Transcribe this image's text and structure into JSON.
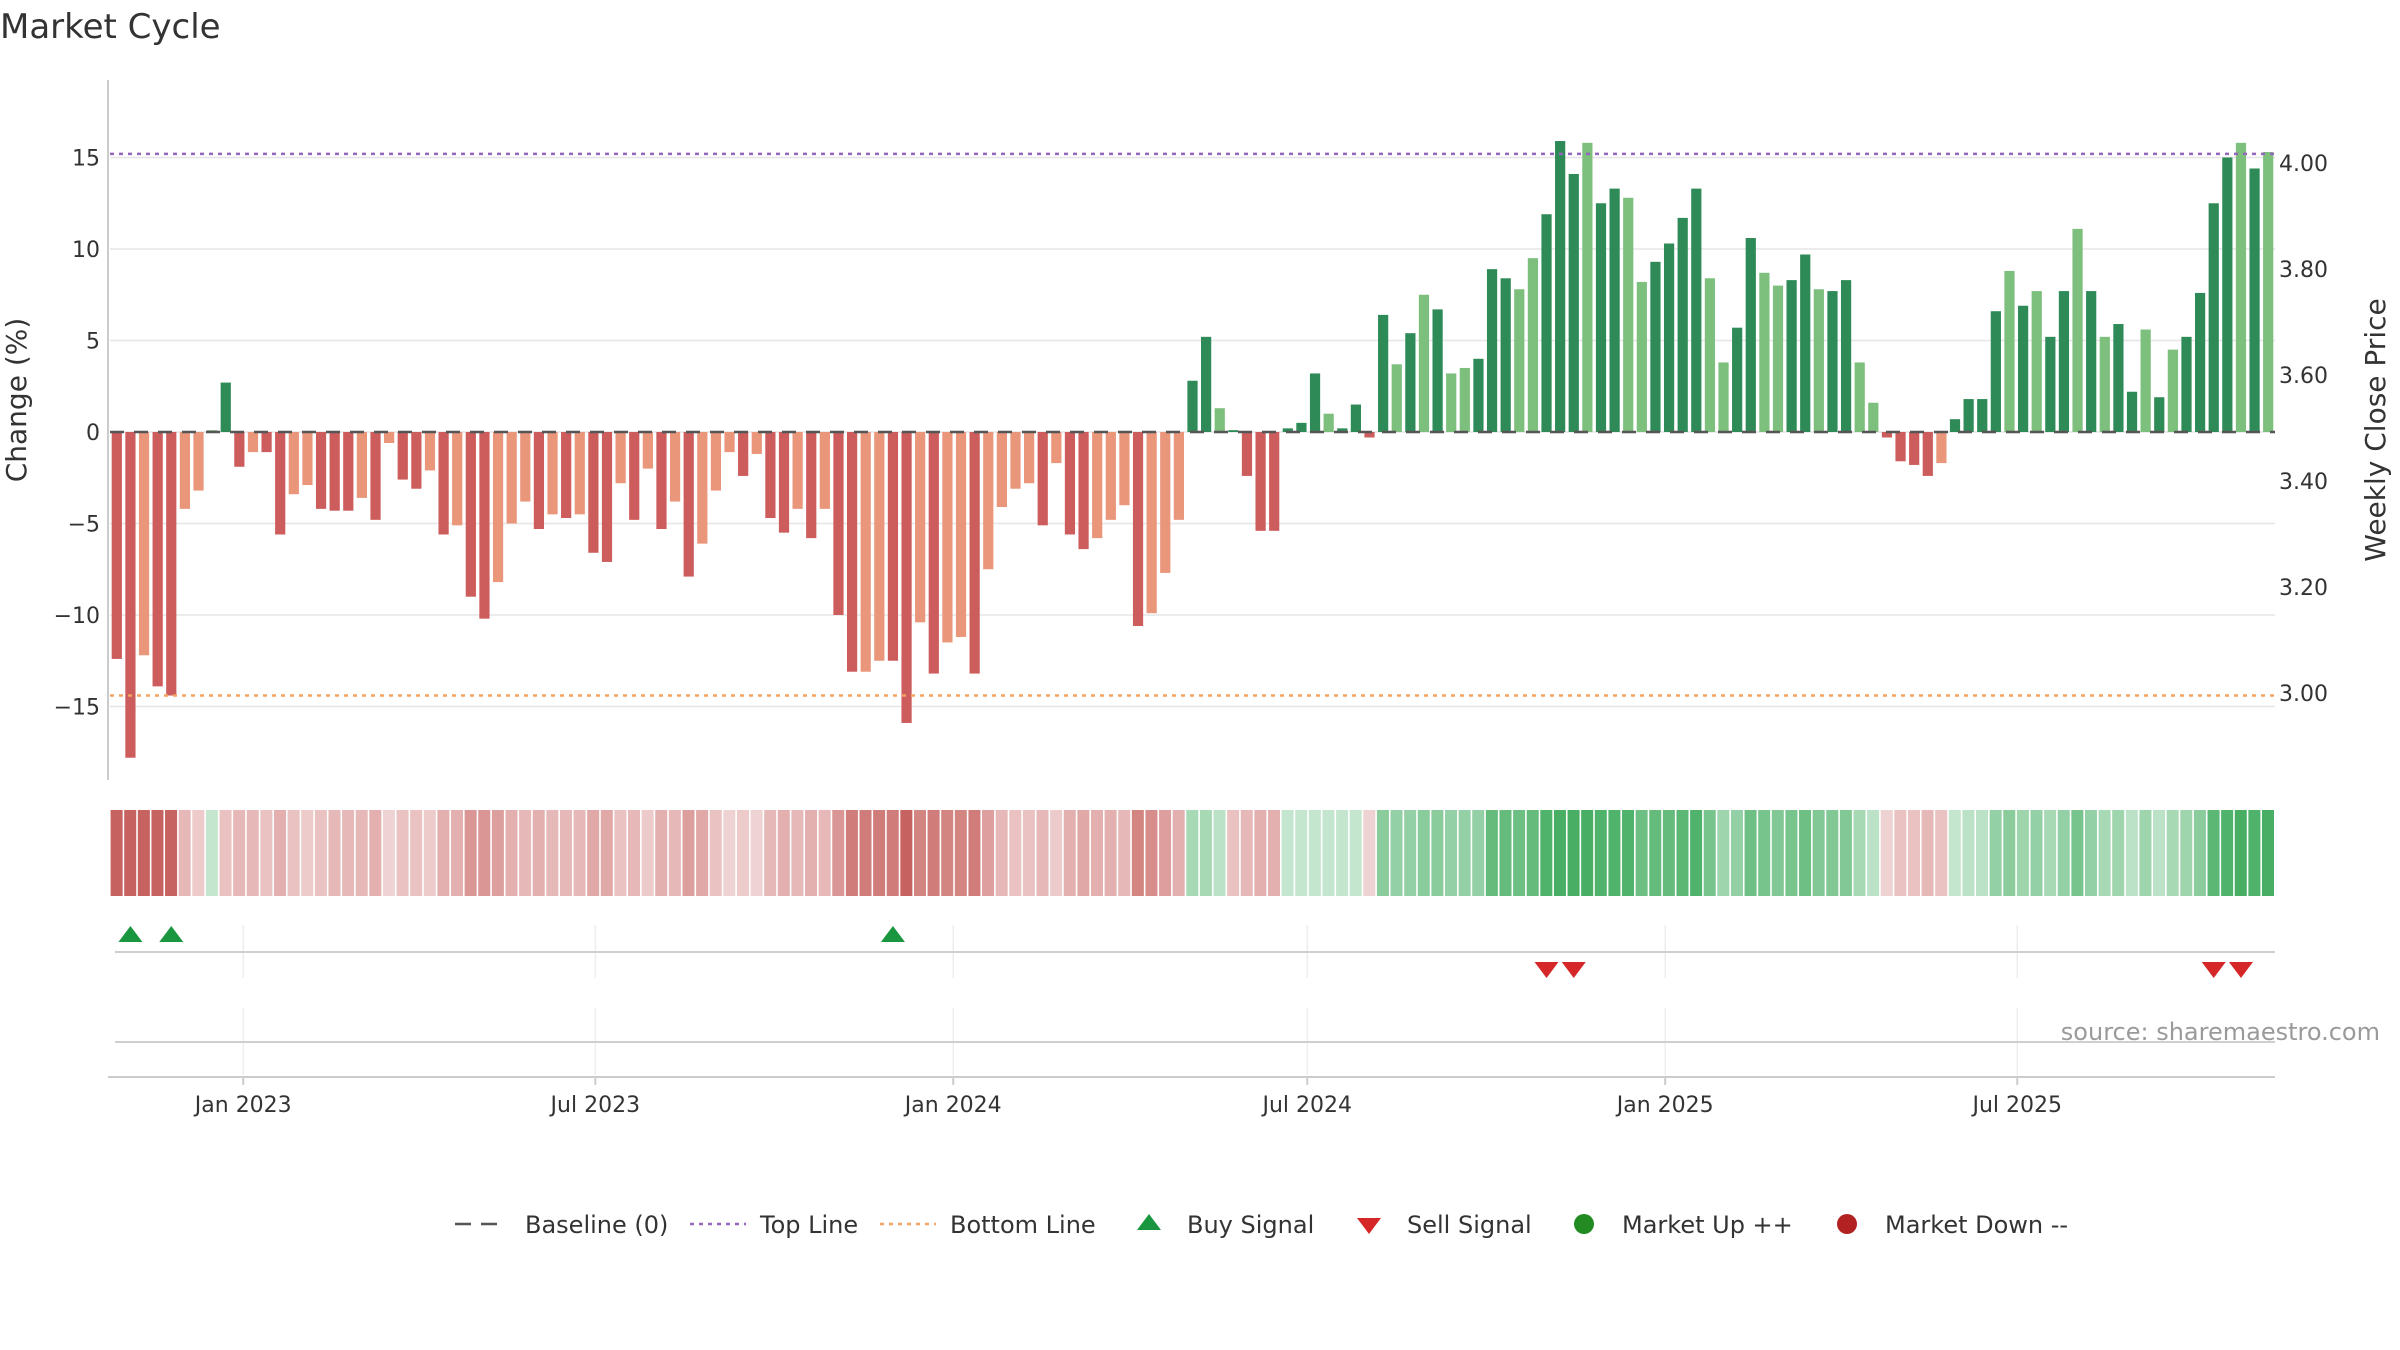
{
  "chart_data": {
    "type": "bar",
    "title": "Market Cycle",
    "ylabel_left": "Change (%)",
    "ylabel_right": "Weekly Close Price",
    "source": "source: sharemaestro.com",
    "y_ticks": [
      "15",
      "10",
      "5",
      "0",
      "−5",
      "−10",
      "−15"
    ],
    "y_tick_values": [
      15,
      10,
      5,
      0,
      -5,
      -10,
      -15
    ],
    "right_ticks": [
      "4.00",
      "3.80",
      "3.60",
      "3.40",
      "3.20",
      "3.00"
    ],
    "right_tick_values": [
      4.0,
      3.8,
      3.6,
      3.4,
      3.2,
      3.0
    ],
    "x_ticks": [
      "Jan 2023",
      "Jul 2023",
      "Jan 2024",
      "Jul 2024",
      "Jan 2025",
      "Jul 2025"
    ],
    "x_tick_dates": [
      "2023-01-01",
      "2023-07-01",
      "2024-01-01",
      "2024-07-01",
      "2025-01-01",
      "2025-07-01"
    ],
    "first_week": "2022-10-28",
    "ylim": [
      -19,
      19
    ],
    "right_ylim": [
      2.85,
      4.12
    ],
    "grid": true,
    "top_line": 15.2,
    "bottom_line": -14.4,
    "colors": {
      "up_strong": "#2e8b57",
      "up_light": "#7dbf7d",
      "down_strong": "#cd5c5c",
      "down_light": "#e9967a",
      "top_line": "#9467bd",
      "bottom_line": "#f4a460",
      "baseline": "#555555",
      "buy": "#1a9641",
      "sell": "#d62728",
      "market_up": "#228b22",
      "market_down": "#b22222",
      "heat_up": "#3daa5b",
      "heat_down": "#c0504d"
    },
    "values": [
      -12.4,
      -17.8,
      -12.2,
      -13.9,
      -14.4,
      -4.2,
      -3.2,
      0.1,
      2.7,
      -1.9,
      -1.1,
      -1.1,
      -5.6,
      -3.4,
      -2.9,
      -4.2,
      -4.3,
      -4.3,
      -3.6,
      -4.8,
      -0.6,
      -2.6,
      -3.1,
      -2.1,
      -5.6,
      -5.1,
      -9.0,
      -10.2,
      -8.2,
      -5.0,
      -3.8,
      -5.3,
      -4.5,
      -4.7,
      -4.5,
      -6.6,
      -7.1,
      -2.8,
      -4.8,
      -2.0,
      -5.3,
      -3.8,
      -7.9,
      -6.1,
      -3.2,
      -1.1,
      -2.4,
      -1.2,
      -4.7,
      -5.5,
      -4.2,
      -5.8,
      -4.2,
      -10.0,
      -13.1,
      -13.1,
      -12.5,
      -12.5,
      -15.9,
      -10.4,
      -13.2,
      -11.5,
      -11.2,
      -13.2,
      -7.5,
      -4.1,
      -3.1,
      -2.8,
      -5.1,
      -1.7,
      -5.6,
      -6.4,
      -5.8,
      -4.8,
      -4.0,
      -10.6,
      -9.9,
      -7.7,
      -4.8,
      2.8,
      5.2,
      1.3,
      0.1,
      -2.4,
      -5.4,
      -5.4,
      0.2,
      0.5,
      3.2,
      1.0,
      0.2,
      1.5,
      -0.3,
      6.4,
      3.7,
      5.4,
      7.5,
      6.7,
      3.2,
      3.5,
      4.0,
      8.9,
      8.4,
      7.8,
      9.5,
      11.9,
      15.9,
      14.1,
      15.8,
      12.5,
      13.3,
      12.8,
      8.2,
      9.3,
      10.3,
      11.7,
      13.3,
      8.4,
      3.8,
      5.7,
      10.6,
      8.7,
      8.0,
      8.3,
      9.7,
      7.8,
      7.7,
      8.3,
      3.8,
      1.6,
      -0.3,
      -1.6,
      -1.8,
      -2.4,
      -1.7,
      0.7,
      1.8,
      1.8,
      6.6,
      8.8,
      6.9,
      7.7,
      5.2,
      7.7,
      11.1,
      7.7,
      5.2,
      5.9,
      2.2,
      5.6,
      1.9,
      4.5,
      5.2,
      7.6,
      12.5,
      15.0,
      15.8,
      14.4,
      15.3
    ],
    "shades": [
      1,
      1,
      0,
      1,
      1,
      0,
      0,
      0,
      1,
      1,
      0,
      1,
      1,
      0,
      0,
      1,
      1,
      1,
      0,
      1,
      0,
      1,
      1,
      0,
      1,
      0,
      1,
      1,
      0,
      0,
      0,
      1,
      0,
      1,
      0,
      1,
      1,
      0,
      1,
      0,
      1,
      0,
      1,
      0,
      0,
      0,
      1,
      0,
      1,
      1,
      0,
      1,
      0,
      1,
      1,
      0,
      0,
      1,
      1,
      0,
      1,
      0,
      0,
      1,
      0,
      0,
      0,
      0,
      1,
      0,
      1,
      1,
      0,
      0,
      0,
      1,
      0,
      0,
      0,
      1,
      1,
      0,
      1,
      1,
      1,
      1,
      1,
      1,
      1,
      0,
      1,
      1,
      1,
      1,
      0,
      1,
      0,
      1,
      0,
      0,
      1,
      1,
      1,
      0,
      0,
      1,
      1,
      1,
      0,
      1,
      1,
      0,
      0,
      1,
      1,
      1,
      1,
      0,
      0,
      1,
      1,
      0,
      0,
      1,
      1,
      0,
      1,
      1,
      0,
      0,
      1,
      1,
      1,
      1,
      0,
      1,
      1,
      1,
      1,
      0,
      1,
      0,
      1,
      1,
      0,
      1,
      0,
      1,
      1,
      0,
      1,
      0,
      1,
      1,
      1,
      1,
      0,
      1
    ],
    "heat": [
      -0.9,
      -0.9,
      -0.9,
      -0.9,
      -0.9,
      -0.4,
      -0.3,
      0.3,
      -0.35,
      -0.4,
      -0.4,
      -0.35,
      -0.45,
      -0.35,
      -0.3,
      -0.35,
      -0.4,
      -0.4,
      -0.4,
      -0.45,
      -0.25,
      -0.35,
      -0.35,
      -0.3,
      -0.45,
      -0.45,
      -0.6,
      -0.6,
      -0.55,
      -0.45,
      -0.4,
      -0.45,
      -0.4,
      -0.4,
      -0.4,
      -0.5,
      -0.5,
      -0.35,
      -0.4,
      -0.3,
      -0.45,
      -0.4,
      -0.55,
      -0.5,
      -0.35,
      -0.25,
      -0.3,
      -0.25,
      -0.4,
      -0.45,
      -0.4,
      -0.45,
      -0.4,
      -0.6,
      -0.75,
      -0.75,
      -0.75,
      -0.75,
      -0.9,
      -0.7,
      -0.75,
      -0.7,
      -0.7,
      -0.75,
      -0.55,
      -0.4,
      -0.35,
      -0.35,
      -0.4,
      -0.3,
      -0.45,
      -0.5,
      -0.45,
      -0.45,
      -0.4,
      -0.7,
      -0.65,
      -0.55,
      -0.45,
      0.45,
      0.45,
      0.35,
      -0.35,
      -0.4,
      -0.45,
      -0.45,
      0.3,
      0.3,
      0.3,
      0.3,
      0.3,
      0.3,
      -0.25,
      0.6,
      0.55,
      0.55,
      0.6,
      0.6,
      0.55,
      0.55,
      0.55,
      0.8,
      0.8,
      0.75,
      0.8,
      0.9,
      0.95,
      0.95,
      0.95,
      0.9,
      0.9,
      0.9,
      0.75,
      0.8,
      0.8,
      0.85,
      0.9,
      0.7,
      0.5,
      0.55,
      0.75,
      0.7,
      0.65,
      0.7,
      0.75,
      0.65,
      0.65,
      0.65,
      0.45,
      0.35,
      -0.25,
      -0.35,
      -0.35,
      -0.4,
      -0.35,
      0.3,
      0.35,
      0.35,
      0.55,
      0.6,
      0.5,
      0.55,
      0.45,
      0.55,
      0.7,
      0.55,
      0.45,
      0.5,
      0.35,
      0.5,
      0.35,
      0.45,
      0.5,
      0.6,
      0.85,
      0.9,
      0.95,
      0.9,
      0.95
    ],
    "buy_signals": [
      1,
      4,
      57
    ],
    "sell_signals": [
      105,
      107,
      154,
      156
    ]
  },
  "legend": [
    {
      "label": "Baseline (0)",
      "icon": "dash-line"
    },
    {
      "label": "Top Line",
      "icon": "dotted-line-purple"
    },
    {
      "label": "Bottom Line",
      "icon": "dotted-line-orange"
    },
    {
      "label": "Buy Signal",
      "icon": "triangle-up-green"
    },
    {
      "label": "Sell Signal",
      "icon": "triangle-down-red"
    },
    {
      "label": "Market Up ++",
      "icon": "circle-green"
    },
    {
      "label": "Market Down --",
      "icon": "circle-red"
    }
  ]
}
